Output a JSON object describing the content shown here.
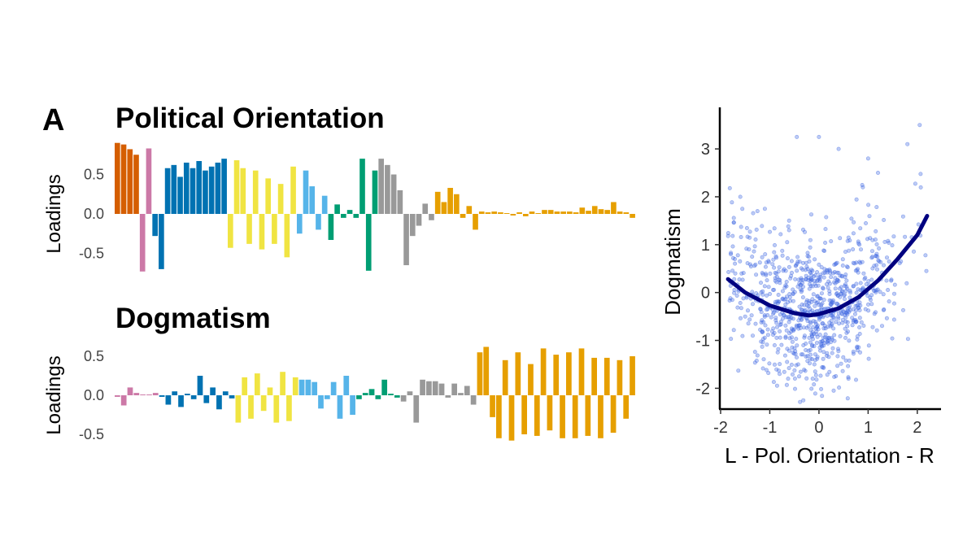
{
  "panel_label": "A",
  "colors": {
    "palette": [
      "#D55E00",
      "#CC79A7",
      "#0072B2",
      "#F0E442",
      "#56B4E9",
      "#009E73",
      "#999999",
      "#E69F00"
    ],
    "curve": "#000080",
    "points": "#4169E1"
  },
  "chart_data": [
    {
      "type": "bar",
      "title": "Political Orientation",
      "ylabel": "Loadings",
      "ylim": [
        -0.75,
        0.95
      ],
      "yticks": [
        0.5,
        0.0,
        -0.5
      ],
      "ytick_labels": [
        "0.5",
        "0.0",
        "-0.5"
      ],
      "values": [
        0.9,
        0.88,
        0.82,
        0.75,
        -0.73,
        0.83,
        -0.28,
        -0.7,
        0.58,
        0.62,
        0.47,
        0.65,
        0.58,
        0.67,
        0.55,
        0.6,
        0.65,
        0.7,
        -0.43,
        0.68,
        0.58,
        -0.38,
        0.55,
        -0.45,
        0.45,
        -0.38,
        0.38,
        -0.55,
        0.6,
        -0.25,
        0.55,
        0.35,
        -0.2,
        0.23,
        -0.33,
        0.12,
        -0.05,
        0.05,
        -0.05,
        0.7,
        -0.72,
        0.55,
        0.7,
        0.62,
        0.5,
        0.3,
        -0.65,
        -0.28,
        -0.15,
        0.13,
        -0.08,
        0.28,
        0.15,
        0.33,
        0.25,
        -0.05,
        0.1,
        -0.2,
        0.03,
        0.02,
        0.03,
        0.02,
        0.01,
        -0.02,
        0.02,
        -0.03,
        0.03,
        0.01,
        0.05,
        0.05,
        0.03,
        0.03,
        0.03,
        0.02,
        0.08,
        0.04,
        0.1,
        0.06,
        0.05,
        0.15,
        0.03,
        0.02,
        -0.05
      ],
      "group_sizes": [
        4,
        2,
        12,
        11,
        5,
        8,
        9,
        32
      ]
    },
    {
      "type": "bar",
      "title": "Dogmatism",
      "ylabel": "Loadings",
      "ylim": [
        -0.65,
        0.65
      ],
      "yticks": [
        0.5,
        0.0,
        -0.5
      ],
      "ytick_labels": [
        "0.5",
        "0.0",
        "-0.5"
      ],
      "values": [
        -0.02,
        -0.13,
        0.1,
        0.03,
        0.01,
        0.01,
        0.03,
        -0.02,
        -0.12,
        0.05,
        -0.15,
        0.02,
        -0.05,
        0.25,
        -0.1,
        0.1,
        -0.18,
        0.05,
        -0.04,
        -0.35,
        0.23,
        -0.3,
        0.28,
        -0.2,
        0.1,
        -0.35,
        0.3,
        -0.33,
        0.23,
        0.2,
        0.2,
        0.17,
        -0.17,
        -0.05,
        0.17,
        -0.3,
        0.25,
        -0.25,
        -0.05,
        0.03,
        0.08,
        -0.05,
        0.2,
        0.02,
        -0.03,
        -0.08,
        0.05,
        -0.35,
        0.2,
        0.18,
        0.18,
        0.15,
        -0.03,
        0.15,
        0.03,
        0.12,
        -0.12,
        0.55,
        0.62,
        -0.28,
        -0.55,
        0.45,
        -0.58,
        0.55,
        -0.5,
        0.4,
        -0.52,
        0.6,
        -0.45,
        0.52,
        -0.55,
        0.55,
        -0.55,
        0.6,
        -0.52,
        0.48,
        -0.55,
        0.48,
        -0.48,
        0.45,
        -0.3,
        0.5
      ],
      "group_sizes": [
        7,
        12,
        10,
        9,
        7,
        12,
        25
      ]
    },
    {
      "type": "scatter",
      "xlabel": "L - Pol. Orientation - R",
      "ylabel": "Dogmatism",
      "xlim": [
        -2.0,
        2.4
      ],
      "ylim": [
        -2.35,
        3.8
      ],
      "xticks": [
        -2,
        -1,
        0,
        1,
        2
      ],
      "yticks": [
        -2,
        -1,
        0,
        1,
        2,
        3
      ],
      "fit": {
        "type": "quadratic",
        "x": [
          -1.85,
          -1.5,
          -1.0,
          -0.5,
          -0.2,
          0.0,
          0.4,
          0.8,
          1.2,
          1.6,
          2.0,
          2.2
        ],
        "y": [
          0.28,
          0.0,
          -0.27,
          -0.43,
          -0.48,
          -0.45,
          -0.33,
          -0.1,
          0.25,
          0.7,
          1.2,
          1.6
        ]
      },
      "points_count": 900,
      "visible_outliers": [
        [
          -1.25,
          1.7
        ],
        [
          -1.1,
          1.75
        ],
        [
          -0.45,
          3.25
        ],
        [
          0.0,
          3.25
        ],
        [
          0.4,
          3.0
        ],
        [
          1.0,
          2.8
        ],
        [
          1.8,
          3.1
        ],
        [
          2.05,
          3.5
        ],
        [
          1.2,
          2.5
        ],
        [
          -1.6,
          2.0
        ],
        [
          0.3,
          -2.05
        ],
        [
          -0.8,
          -1.7
        ],
        [
          0.6,
          -1.8
        ]
      ]
    }
  ]
}
